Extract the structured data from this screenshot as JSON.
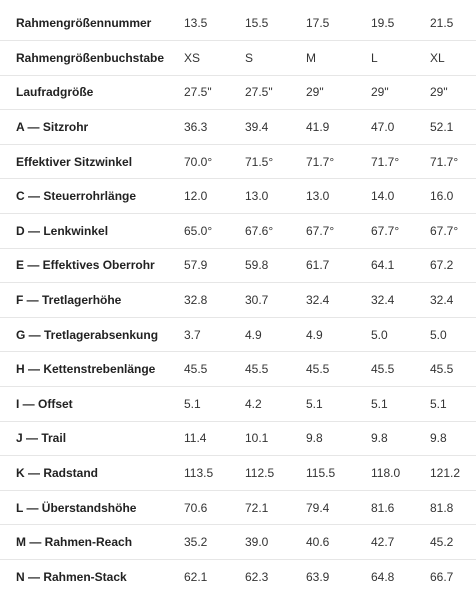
{
  "table": {
    "rows": [
      {
        "label": "Rahmengrößennummer",
        "values": [
          "13.5",
          "15.5",
          "17.5",
          "19.5",
          "21.5"
        ]
      },
      {
        "label": "Rahmengrößenbuchstabe",
        "values": [
          "XS",
          "S",
          "M",
          "L",
          "XL"
        ]
      },
      {
        "label": "Laufradgröße",
        "values": [
          "27.5\"",
          "27.5\"",
          "29\"",
          "29\"",
          "29\""
        ]
      },
      {
        "label": "A — Sitzrohr",
        "values": [
          "36.3",
          "39.4",
          "41.9",
          "47.0",
          "52.1"
        ]
      },
      {
        "label": "Effektiver Sitzwinkel",
        "values": [
          "70.0°",
          "71.5°",
          "71.7°",
          "71.7°",
          "71.7°"
        ]
      },
      {
        "label": "C — Steuerrohrlänge",
        "values": [
          "12.0",
          "13.0",
          "13.0",
          "14.0",
          "16.0"
        ]
      },
      {
        "label": "D — Lenkwinkel",
        "values": [
          "65.0°",
          "67.6°",
          "67.7°",
          "67.7°",
          "67.7°"
        ]
      },
      {
        "label": "E — Effektives Oberrohr",
        "values": [
          "57.9",
          "59.8",
          "61.7",
          "64.1",
          "67.2"
        ]
      },
      {
        "label": "F — Tretlagerhöhe",
        "values": [
          "32.8",
          "30.7",
          "32.4",
          "32.4",
          "32.4"
        ]
      },
      {
        "label": "G — Tretlagerabsenkung",
        "values": [
          "3.7",
          "4.9",
          "4.9",
          "5.0",
          "5.0"
        ]
      },
      {
        "label": "H — Kettenstrebenlänge",
        "values": [
          "45.5",
          "45.5",
          "45.5",
          "45.5",
          "45.5"
        ]
      },
      {
        "label": "I — Offset",
        "values": [
          "5.1",
          "4.2",
          "5.1",
          "5.1",
          "5.1"
        ]
      },
      {
        "label": "J — Trail",
        "values": [
          "11.4",
          "10.1",
          "9.8",
          "9.8",
          "9.8"
        ]
      },
      {
        "label": "K — Radstand",
        "values": [
          "113.5",
          "112.5",
          "115.5",
          "118.0",
          "121.2"
        ]
      },
      {
        "label": "L — Überstandshöhe",
        "values": [
          "70.6",
          "72.1",
          "79.4",
          "81.6",
          "81.8"
        ]
      },
      {
        "label": "M — Rahmen-Reach",
        "values": [
          "35.2",
          "39.0",
          "40.6",
          "42.7",
          "45.2"
        ]
      },
      {
        "label": "N — Rahmen-Stack",
        "values": [
          "62.1",
          "62.3",
          "63.9",
          "64.8",
          "66.7"
        ]
      }
    ]
  }
}
